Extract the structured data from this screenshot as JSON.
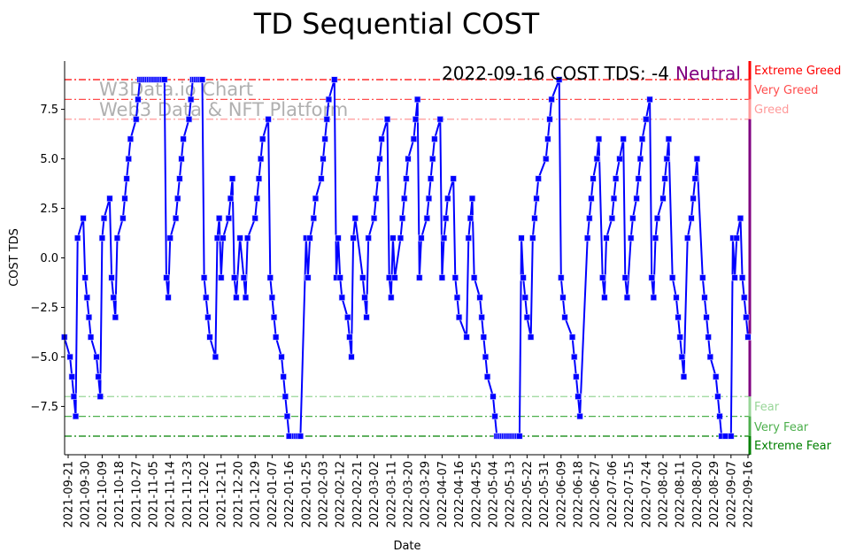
{
  "chart_data": {
    "type": "line",
    "title": "TD Sequential COST",
    "xlabel": "Date",
    "ylabel": "COST TDS",
    "x_start_date": "2021-09-21",
    "x_units": "days since x_start_date",
    "xlim": [
      -2,
      360
    ],
    "ylim": [
      -9.9,
      9.85
    ],
    "yticks": [
      -7.5,
      -5.0,
      -2.5,
      0.0,
      2.5,
      5.0,
      7.5
    ],
    "ytick_labels": [
      "−7.5",
      "−5.0",
      "−2.5",
      "0.0",
      "2.5",
      "5.0",
      "7.5"
    ],
    "xtick_labels": [
      "2021-09-21",
      "2021-09-30",
      "2021-10-09",
      "2021-10-18",
      "2021-10-27",
      "2021-11-05",
      "2021-11-14",
      "2021-11-23",
      "2021-12-02",
      "2021-12-11",
      "2021-12-20",
      "2021-12-29",
      "2022-01-07",
      "2022-01-16",
      "2022-01-25",
      "2022-02-03",
      "2022-02-12",
      "2022-02-21",
      "2022-03-02",
      "2022-03-11",
      "2022-03-20",
      "2022-03-29",
      "2022-04-07",
      "2022-04-16",
      "2022-04-25",
      "2022-05-04",
      "2022-05-13",
      "2022-05-22",
      "2022-05-31",
      "2022-06-09",
      "2022-06-18",
      "2022-06-27",
      "2022-07-06",
      "2022-07-15",
      "2022-07-24",
      "2022-08-02",
      "2022-08-11",
      "2022-08-20",
      "2022-08-29",
      "2022-09-07",
      "2022-09-16"
    ],
    "xtick_step_days": 9,
    "series": [
      {
        "name": "COST TDS",
        "color": "#0000ff",
        "points": [
          [
            -2,
            -4
          ],
          [
            1,
            -5
          ],
          [
            2,
            -6
          ],
          [
            3,
            -7
          ],
          [
            4,
            -8
          ],
          [
            5,
            1
          ],
          [
            8,
            2
          ],
          [
            9,
            -1
          ],
          [
            10,
            -2
          ],
          [
            11,
            -3
          ],
          [
            12,
            -4
          ],
          [
            15,
            -5
          ],
          [
            16,
            -6
          ],
          [
            17,
            -7
          ],
          [
            18,
            1
          ],
          [
            19,
            2
          ],
          [
            22,
            3
          ],
          [
            23,
            -1
          ],
          [
            24,
            -2
          ],
          [
            25,
            -3
          ],
          [
            26,
            1
          ],
          [
            29,
            2
          ],
          [
            30,
            3
          ],
          [
            31,
            4
          ],
          [
            32,
            5
          ],
          [
            33,
            6
          ],
          [
            36,
            7
          ],
          [
            37,
            8
          ],
          [
            38,
            9
          ],
          [
            39,
            9
          ],
          [
            40,
            9
          ],
          [
            41,
            9
          ],
          [
            42,
            9
          ],
          [
            43,
            9
          ],
          [
            44,
            9
          ],
          [
            45,
            9
          ],
          [
            46,
            9
          ],
          [
            47,
            9
          ],
          [
            48,
            9
          ],
          [
            49,
            9
          ],
          [
            50,
            9
          ],
          [
            51,
            9
          ],
          [
            52,
            -1
          ],
          [
            53,
            -2
          ],
          [
            54,
            1
          ],
          [
            57,
            2
          ],
          [
            58,
            3
          ],
          [
            59,
            4
          ],
          [
            60,
            5
          ],
          [
            61,
            6
          ],
          [
            64,
            7
          ],
          [
            65,
            8
          ],
          [
            66,
            9
          ],
          [
            67,
            9
          ],
          [
            68,
            9
          ],
          [
            69,
            9
          ],
          [
            70,
            9
          ],
          [
            71,
            9
          ],
          [
            72,
            -1
          ],
          [
            73,
            -2
          ],
          [
            74,
            -3
          ],
          [
            75,
            -4
          ],
          [
            78,
            -5
          ],
          [
            79,
            1
          ],
          [
            80,
            2
          ],
          [
            81,
            -1
          ],
          [
            82,
            1
          ],
          [
            85,
            2
          ],
          [
            86,
            3
          ],
          [
            87,
            4
          ],
          [
            88,
            -1
          ],
          [
            89,
            -2
          ],
          [
            91,
            1
          ],
          [
            93,
            -1
          ],
          [
            94,
            -2
          ],
          [
            95,
            1
          ],
          [
            99,
            2
          ],
          [
            100,
            3
          ],
          [
            101,
            4
          ],
          [
            102,
            5
          ],
          [
            103,
            6
          ],
          [
            106,
            7
          ],
          [
            107,
            -1
          ],
          [
            108,
            -2
          ],
          [
            109,
            -3
          ],
          [
            110,
            -4
          ],
          [
            113,
            -5
          ],
          [
            114,
            -6
          ],
          [
            115,
            -7
          ],
          [
            116,
            -8
          ],
          [
            117,
            -9
          ],
          [
            120,
            -9
          ],
          [
            121,
            -9
          ],
          [
            122,
            -9
          ],
          [
            123,
            -9
          ],
          [
            126,
            1
          ],
          [
            127,
            -1
          ],
          [
            128,
            1
          ],
          [
            130,
            2
          ],
          [
            131,
            3
          ],
          [
            134,
            4
          ],
          [
            135,
            5
          ],
          [
            136,
            6
          ],
          [
            137,
            7
          ],
          [
            138,
            8
          ],
          [
            141,
            9
          ],
          [
            142,
            -1
          ],
          [
            143,
            1
          ],
          [
            144,
            -1
          ],
          [
            145,
            -2
          ],
          [
            148,
            -3
          ],
          [
            149,
            -4
          ],
          [
            150,
            -5
          ],
          [
            151,
            1
          ],
          [
            152,
            2
          ],
          [
            156,
            -1
          ],
          [
            157,
            -2
          ],
          [
            158,
            -3
          ],
          [
            159,
            1
          ],
          [
            162,
            2
          ],
          [
            163,
            3
          ],
          [
            164,
            4
          ],
          [
            165,
            5
          ],
          [
            166,
            6
          ],
          [
            169,
            7
          ],
          [
            170,
            -1
          ],
          [
            171,
            -2
          ],
          [
            172,
            1
          ],
          [
            173,
            -1
          ],
          [
            176,
            1
          ],
          [
            177,
            2
          ],
          [
            178,
            3
          ],
          [
            179,
            4
          ],
          [
            180,
            5
          ],
          [
            183,
            6
          ],
          [
            184,
            7
          ],
          [
            185,
            8
          ],
          [
            186,
            -1
          ],
          [
            187,
            1
          ],
          [
            190,
            2
          ],
          [
            191,
            3
          ],
          [
            192,
            4
          ],
          [
            193,
            5
          ],
          [
            194,
            6
          ],
          [
            197,
            7
          ],
          [
            198,
            -1
          ],
          [
            199,
            1
          ],
          [
            200,
            2
          ],
          [
            201,
            3
          ],
          [
            204,
            4
          ],
          [
            205,
            -1
          ],
          [
            206,
            -2
          ],
          [
            207,
            -3
          ],
          [
            211,
            -4
          ],
          [
            212,
            1
          ],
          [
            213,
            2
          ],
          [
            214,
            3
          ],
          [
            215,
            -1
          ],
          [
            218,
            -2
          ],
          [
            219,
            -3
          ],
          [
            220,
            -4
          ],
          [
            221,
            -5
          ],
          [
            222,
            -6
          ],
          [
            225,
            -7
          ],
          [
            226,
            -8
          ],
          [
            227,
            -9
          ],
          [
            228,
            -9
          ],
          [
            229,
            -9
          ],
          [
            230,
            -9
          ],
          [
            231,
            -9
          ],
          [
            232,
            -9
          ],
          [
            233,
            -9
          ],
          [
            234,
            -9
          ],
          [
            235,
            -9
          ],
          [
            236,
            -9
          ],
          [
            237,
            -9
          ],
          [
            238,
            -9
          ],
          [
            239,
            -9
          ],
          [
            240,
            1
          ],
          [
            241,
            -1
          ],
          [
            242,
            -2
          ],
          [
            243,
            -3
          ],
          [
            245,
            -4
          ],
          [
            246,
            1
          ],
          [
            247,
            2
          ],
          [
            248,
            3
          ],
          [
            249,
            4
          ],
          [
            253,
            5
          ],
          [
            254,
            6
          ],
          [
            255,
            7
          ],
          [
            256,
            8
          ],
          [
            260,
            9
          ],
          [
            261,
            -1
          ],
          [
            262,
            -2
          ],
          [
            263,
            -3
          ],
          [
            267,
            -4
          ],
          [
            268,
            -5
          ],
          [
            269,
            -6
          ],
          [
            270,
            -7
          ],
          [
            271,
            -8
          ],
          [
            275,
            1
          ],
          [
            276,
            2
          ],
          [
            277,
            3
          ],
          [
            278,
            4
          ],
          [
            280,
            5
          ],
          [
            281,
            6
          ],
          [
            283,
            -1
          ],
          [
            284,
            -2
          ],
          [
            285,
            1
          ],
          [
            288,
            2
          ],
          [
            289,
            3
          ],
          [
            290,
            4
          ],
          [
            292,
            5
          ],
          [
            294,
            6
          ],
          [
            295,
            -1
          ],
          [
            296,
            -2
          ],
          [
            298,
            1
          ],
          [
            299,
            2
          ],
          [
            301,
            3
          ],
          [
            302,
            4
          ],
          [
            303,
            5
          ],
          [
            304,
            6
          ],
          [
            306,
            7
          ],
          [
            308,
            8
          ],
          [
            309,
            -1
          ],
          [
            310,
            -2
          ],
          [
            311,
            1
          ],
          [
            312,
            2
          ],
          [
            315,
            3
          ],
          [
            316,
            4
          ],
          [
            317,
            5
          ],
          [
            318,
            6
          ],
          [
            320,
            -1
          ],
          [
            322,
            -2
          ],
          [
            323,
            -3
          ],
          [
            324,
            -4
          ],
          [
            325,
            -5
          ],
          [
            326,
            -6
          ],
          [
            328,
            1
          ],
          [
            330,
            2
          ],
          [
            331,
            3
          ],
          [
            332,
            4
          ],
          [
            333,
            5
          ],
          [
            336,
            -1
          ],
          [
            337,
            -2
          ],
          [
            338,
            -3
          ],
          [
            339,
            -4
          ],
          [
            340,
            -5
          ],
          [
            343,
            -6
          ],
          [
            344,
            -7
          ],
          [
            345,
            -8
          ],
          [
            346,
            -9
          ],
          [
            348,
            -9
          ],
          [
            351,
            -9
          ],
          [
            352,
            1
          ],
          [
            353,
            -1
          ],
          [
            354,
            1
          ],
          [
            356,
            2
          ],
          [
            357,
            -1
          ],
          [
            358,
            -2
          ],
          [
            359,
            -3
          ],
          [
            360,
            -4
          ]
        ]
      }
    ],
    "reference_lines": [
      {
        "label": "Extreme Greed",
        "value": 9,
        "color": "#ff0000"
      },
      {
        "label": "Very Greed",
        "value": 8,
        "color": "#ff4c4c"
      },
      {
        "label": "Greed",
        "value": 7,
        "color": "#ff9999"
      },
      {
        "label": "Fear",
        "value": -7,
        "color": "#99d699"
      },
      {
        "label": "Very Fear",
        "value": -8,
        "color": "#4caf4c"
      },
      {
        "label": "Extreme Fear",
        "value": -9,
        "color": "#008000"
      }
    ],
    "neutral_color": "#800080",
    "annotation": {
      "text": "2022-09-16 COST TDS: -4",
      "status": "Neutral",
      "status_color": "#800080"
    },
    "watermark": [
      "W3Data.io Chart",
      "Web3 Data & NFT Platform"
    ],
    "grid": false,
    "legend": "none"
  }
}
